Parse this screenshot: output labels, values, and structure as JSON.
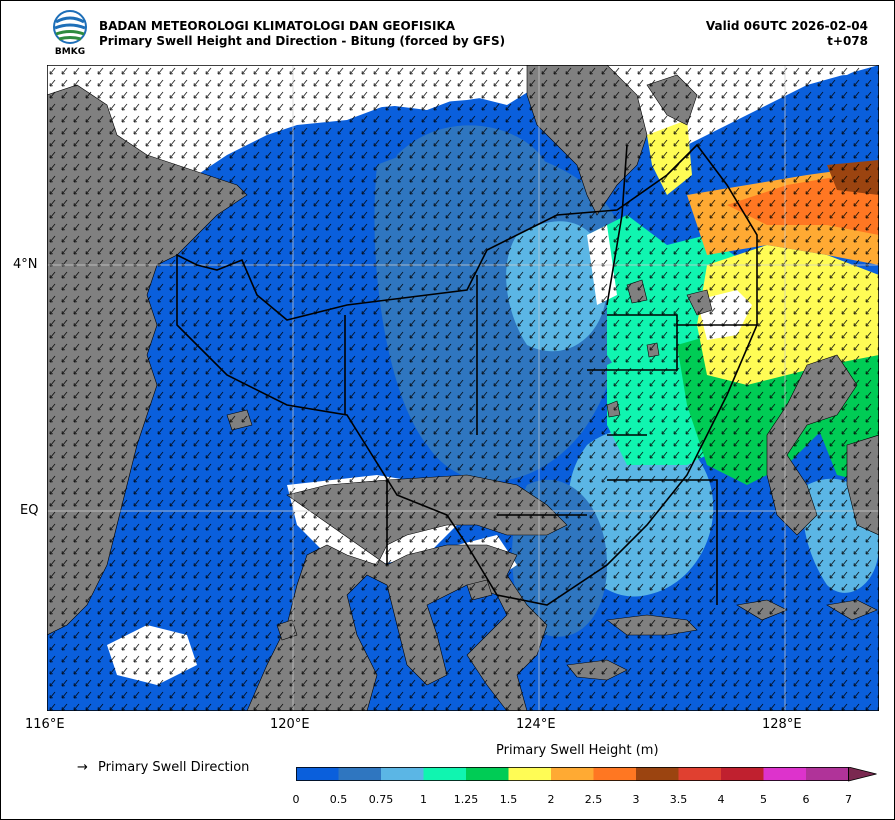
{
  "header": {
    "logo_text": "BMKG",
    "agency": "BADAN METEOROLOGI KLIMATOLOGI DAN GEOFISIKA",
    "product": "Primary Swell Height and Direction - Bitung (forced by GFS)",
    "valid": "Valid 06UTC 2026-02-04",
    "forecast_step": "t+078"
  },
  "map": {
    "lat_labels": [
      "4°N",
      "EQ"
    ],
    "lon_labels": [
      "116°E",
      "120°E",
      "124°E",
      "128°E"
    ],
    "land_color": "#808080",
    "nodata_color": "#ffffff",
    "gridline_color": "#cccccc"
  },
  "legend": {
    "arrow_glyph": "→",
    "arrow_label": "Primary Swell Direction"
  },
  "colorbar": {
    "title": "Primary Swell Height (m)",
    "ticks": [
      "0",
      "0.5",
      "0.75",
      "1",
      "1.25",
      "1.5",
      "2",
      "2.5",
      "3",
      "3.5",
      "4",
      "5",
      "6",
      "7"
    ],
    "colors": [
      "#0a5fdc",
      "#2f76c0",
      "#5bb6e5",
      "#10f5b0",
      "#00cc55",
      "#fffc55",
      "#ffaa33",
      "#ff7722",
      "#9b4410",
      "#e04030",
      "#c0202f",
      "#dd33cc",
      "#b03399",
      "#7a2850"
    ]
  }
}
